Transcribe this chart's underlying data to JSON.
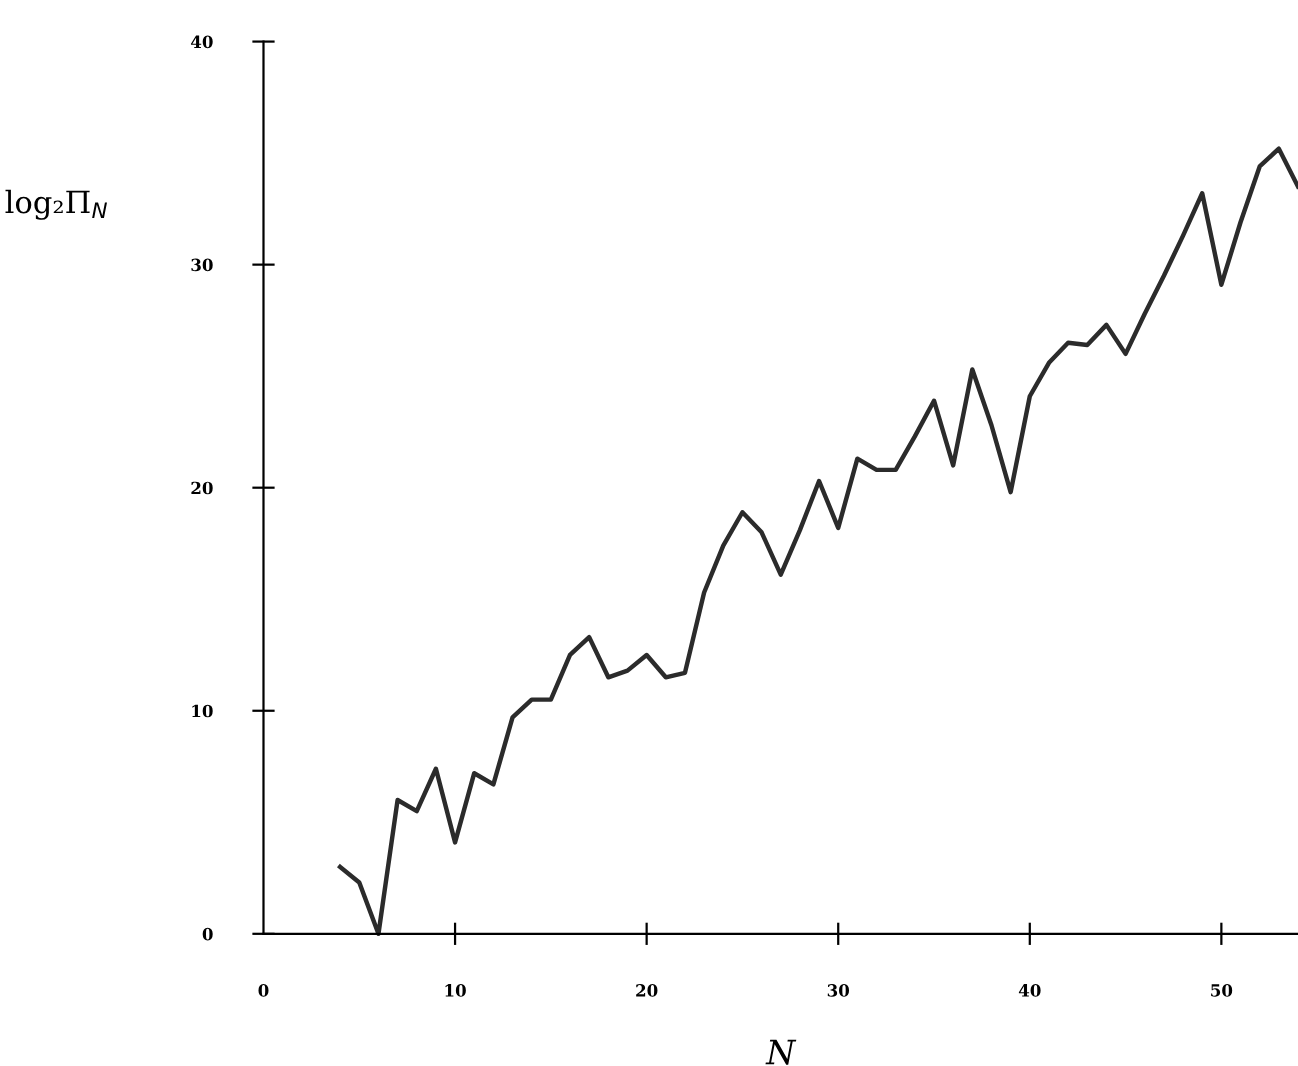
{
  "chart_data": {
    "type": "line",
    "xlabel": "N",
    "ylabel": "log₂Π$_{N}$",
    "color": "#2b2b2b",
    "x": [
      4,
      5,
      6,
      7,
      8,
      9,
      10,
      11,
      12,
      13,
      14,
      15,
      16,
      17,
      18,
      19,
      20,
      21,
      22,
      23,
      24,
      25,
      26,
      27,
      28,
      29,
      30,
      31,
      32,
      33,
      34,
      35,
      36,
      37,
      38,
      39,
      40,
      41,
      42,
      43,
      44,
      45,
      46,
      47,
      48,
      49,
      50,
      51,
      52,
      53,
      54
    ],
    "values": [
      3.0,
      2.3,
      0,
      6.0,
      5.5,
      7.4,
      4.1,
      7.2,
      6.7,
      9.7,
      10.5,
      10.5,
      12.5,
      13.3,
      11.5,
      11.8,
      12.5,
      11.5,
      11.7,
      15.3,
      17.4,
      18.9,
      18.0,
      16.1,
      18.1,
      20.3,
      18.2,
      21.3,
      20.8,
      20.8,
      22.3,
      23.9,
      21.0,
      25.3,
      22.8,
      19.8,
      24.1,
      25.6,
      26.5,
      26.4,
      27.3,
      26.0,
      27.8,
      29.5,
      31.3,
      33.2,
      29.1,
      31.9,
      34.4,
      35.2,
      33.5
    ],
    "xlim": [
      0,
      54
    ],
    "ylim": [
      0,
      40
    ],
    "xticks": [
      0,
      10,
      20,
      30,
      40,
      50
    ],
    "yticks": [
      0,
      10,
      20,
      30,
      40
    ],
    "grid": false,
    "marker": "none",
    "line_style": "solid"
  }
}
